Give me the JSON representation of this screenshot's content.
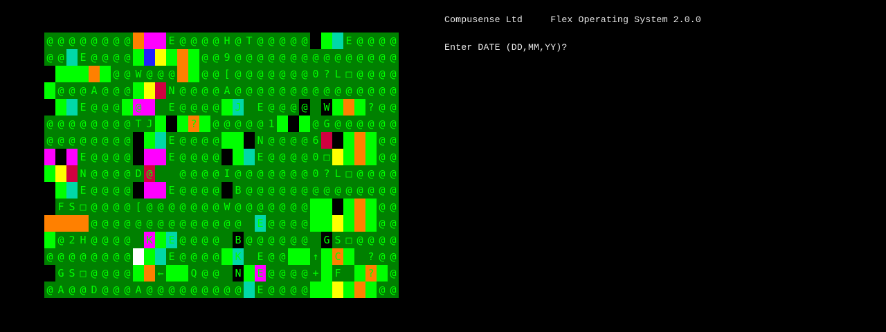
{
  "terminal": {
    "header": "Compusense Ltd     Flex Operating System 2.0.0",
    "prompt": "Enter DATE (DD,MM,YY)?"
  },
  "screen_grid": {
    "colors": {
      "background": "#008000",
      "text": "#00ff00",
      "light_green": "#00ff00",
      "orange": "#ff8000",
      "magenta": "#ff00ff",
      "teal": "#00d8a8",
      "yellow": "#ffff00",
      "blue": "#2020ff",
      "crimson": "#d00040",
      "white": "#ffffff",
      "black": "#000000"
    },
    "rows": [
      "@@@@@@@@   E@@@@H@T@@@@@ I E@@@@",
      "@@ E@@@@     ?@@9@@@@@@@@@@@@@@@",
      " 1   ?@@W@@@ ?@@[@@@@@@@0?L□@@@@",
      "H@@@A@@@   N@@@@A@@@@@@@@@@@@@@@",
      " J E@@@@@  E@@@@@J E@@@@ W   ?@@",
      "@@@@@@@@TJ   ?@@@@@@1  @@G@@@@@@",
      "@@@@@@@@ J E@@@@P@ N@@@@6    ?@@",
      "   E@@@@   E@@@@ J E@@@@0□   ?@@",
      "   N@@@@D@  @@@@I@@@@@@@0?L□@@@@",
      " J E@@@@   E@@@@ B@@@@@@@@@@@@@@",
      " FS□@@@@[@@@@@@@W@@@@@@@U    ?@@",
      "    @@@@@@@@@@@@@@ E@@@@MQ   ?@@",
      "(@2H@@@@ K E@@@@ B@@@@@@ GS□@@@@",
      "@@@@@@@@ K E@@@@0K E@@@@↑;C  ?@@",
      " GS□@@@@+ ← %Q@@ N E@@@@+#F  ?@@",
      "@A@@D@@@A@@@@@@@@@ E@@@@MQ   ?@@"
    ]
  }
}
